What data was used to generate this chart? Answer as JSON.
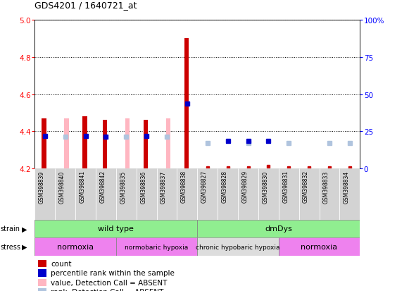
{
  "title": "GDS4201 / 1640721_at",
  "samples": [
    "GSM398839",
    "GSM398840",
    "GSM398841",
    "GSM398842",
    "GSM398835",
    "GSM398836",
    "GSM398837",
    "GSM398838",
    "GSM398827",
    "GSM398828",
    "GSM398829",
    "GSM398830",
    "GSM398831",
    "GSM398832",
    "GSM398833",
    "GSM398834"
  ],
  "count_values": [
    4.47,
    null,
    4.48,
    4.46,
    null,
    4.46,
    null,
    4.9,
    null,
    null,
    null,
    null,
    null,
    null,
    null,
    null
  ],
  "pink_bar_values": [
    null,
    4.47,
    null,
    null,
    4.47,
    null,
    4.47,
    null,
    null,
    null,
    null,
    null,
    null,
    null,
    null,
    null
  ],
  "blue_rank_present": [
    4.375,
    null,
    4.375,
    4.37,
    null,
    4.375,
    null,
    4.55,
    null,
    null,
    null,
    null,
    null,
    null,
    null,
    null
  ],
  "light_blue_rank": [
    null,
    4.37,
    null,
    null,
    4.37,
    null,
    4.37,
    null,
    4.335,
    null,
    4.335,
    null,
    4.335,
    null,
    4.335,
    4.335
  ],
  "dark_blue_rank": [
    null,
    null,
    null,
    null,
    null,
    null,
    null,
    null,
    null,
    4.35,
    4.35,
    4.35,
    null,
    null,
    null,
    null
  ],
  "red_absent_small": [
    null,
    null,
    null,
    null,
    null,
    null,
    null,
    null,
    4.205,
    4.205,
    4.205,
    4.21,
    4.205,
    4.205,
    4.205,
    4.205
  ],
  "ylim": [
    4.2,
    5.0
  ],
  "yticks": [
    4.2,
    4.4,
    4.6,
    4.8,
    5.0
  ],
  "y2ticks": [
    0,
    25,
    50,
    75,
    100
  ],
  "y2labels": [
    "0",
    "25",
    "50",
    "75",
    "100%"
  ],
  "strain_groups": [
    {
      "label": "wild type",
      "start": 0,
      "end": 8,
      "color": "#90ee90"
    },
    {
      "label": "dmDys",
      "start": 8,
      "end": 16,
      "color": "#90ee90"
    }
  ],
  "stress_groups": [
    {
      "label": "normoxia",
      "start": 0,
      "end": 4,
      "color": "#ee82ee"
    },
    {
      "label": "normobaric hypoxia",
      "start": 4,
      "end": 8,
      "color": "#ee82ee"
    },
    {
      "label": "chronic hypobaric hypoxia",
      "start": 8,
      "end": 12,
      "color": "#dddddd"
    },
    {
      "label": "normoxia",
      "start": 12,
      "end": 16,
      "color": "#ee82ee"
    }
  ],
  "legend_items": [
    {
      "label": "count",
      "color": "#cc0000"
    },
    {
      "label": "percentile rank within the sample",
      "color": "#0000cc"
    },
    {
      "label": "value, Detection Call = ABSENT",
      "color": "#ffb6c1"
    },
    {
      "label": "rank, Detection Call = ABSENT",
      "color": "#b0c4de"
    }
  ],
  "bar_color_red": "#cc0000",
  "bar_color_pink": "#ffb6c1",
  "dot_color_blue": "#0000cc",
  "dot_color_lightblue": "#b0c4de",
  "dot_color_red_small": "#cc0000",
  "plot_bg": "#ffffff",
  "label_bg": "#d3d3d3"
}
